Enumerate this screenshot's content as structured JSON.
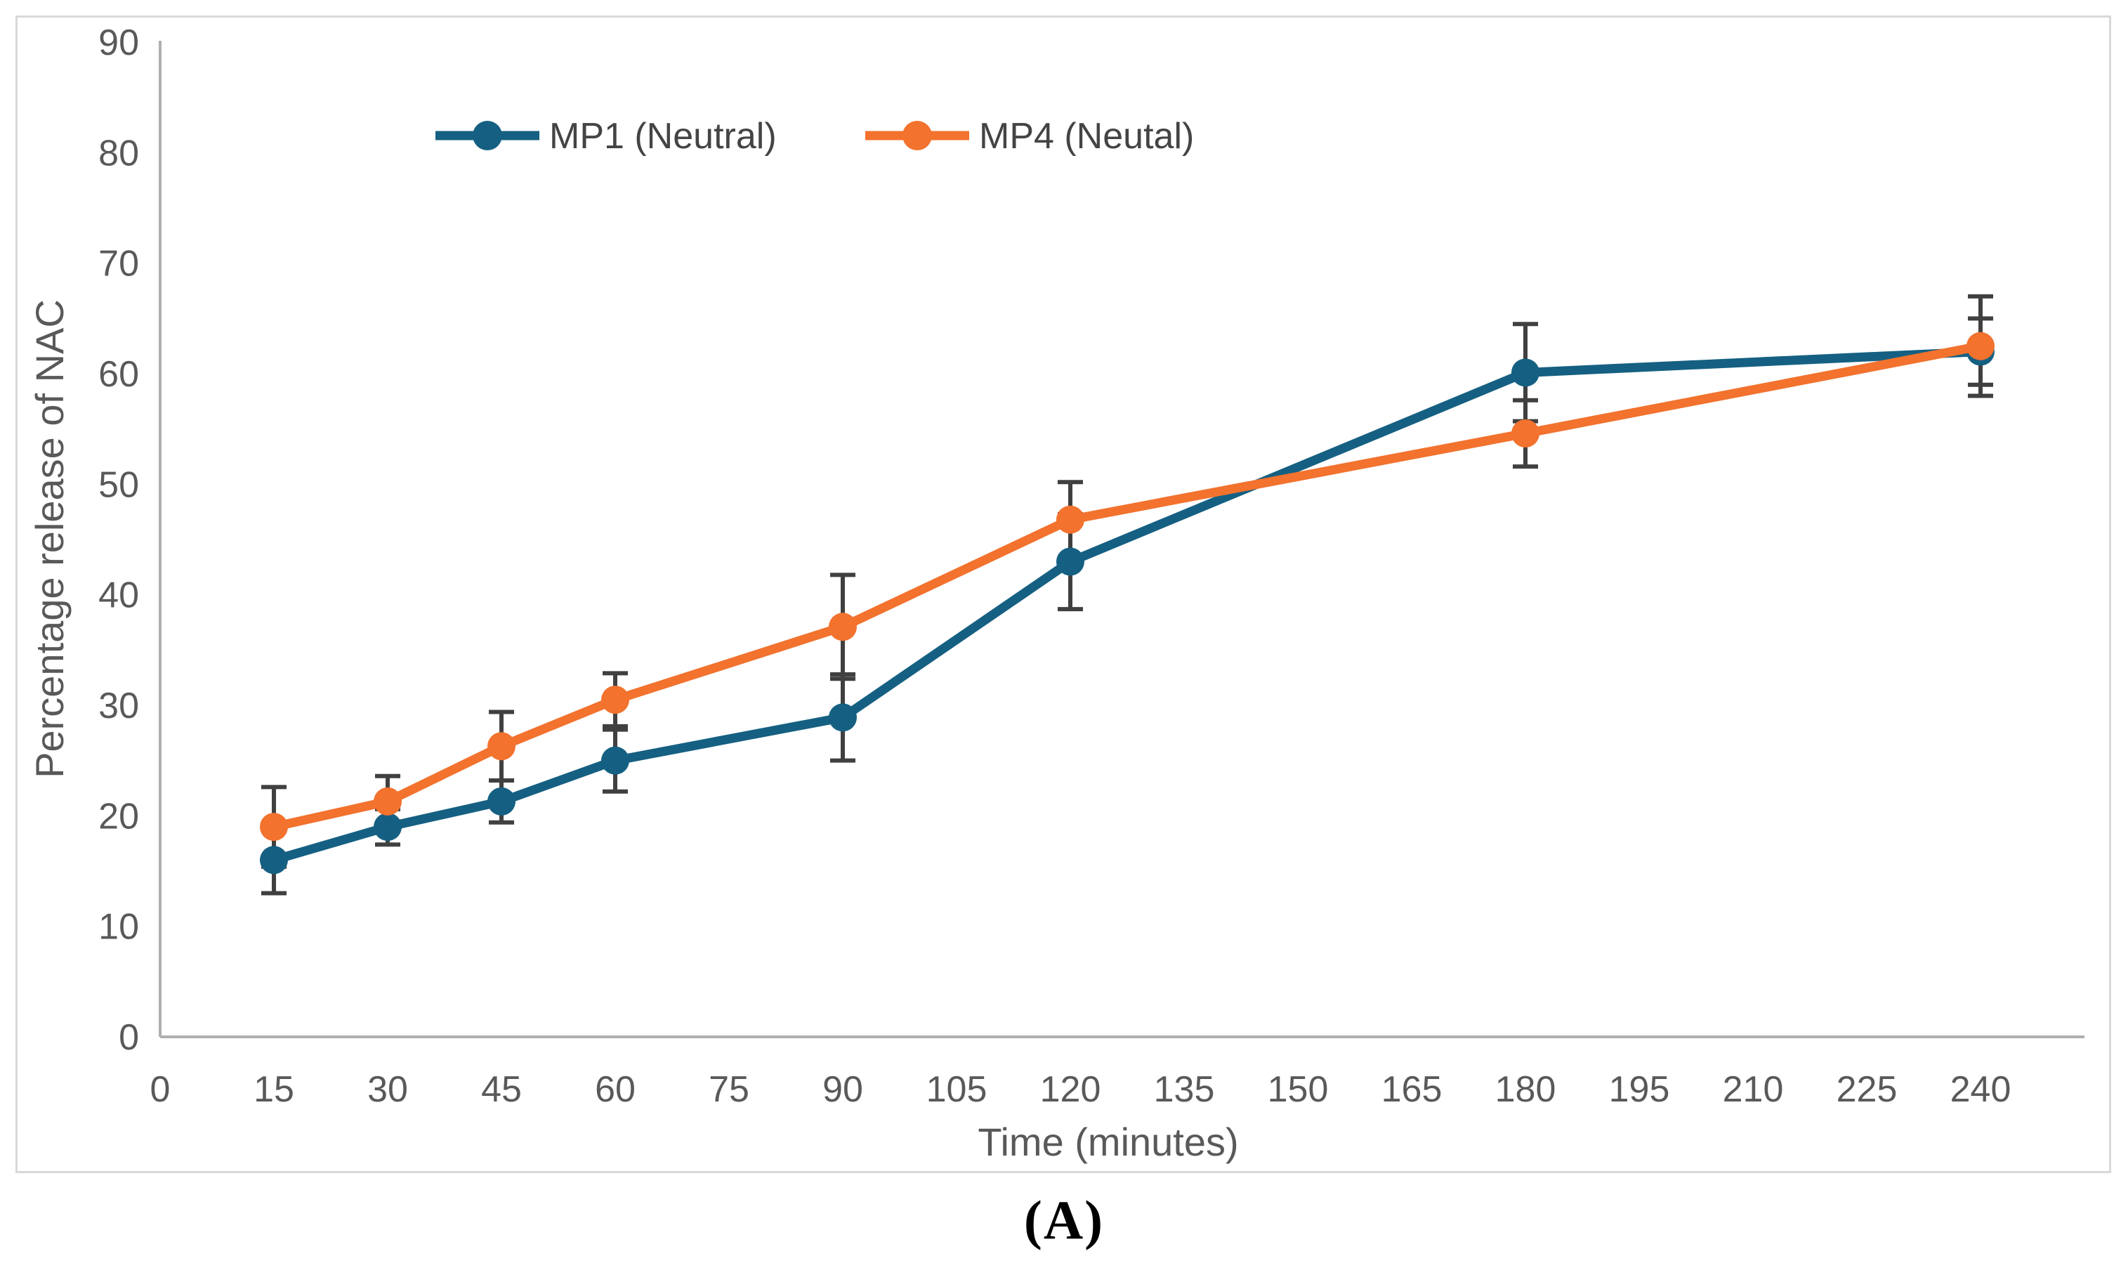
{
  "figure": {
    "caption": "(A)"
  },
  "chart_data": {
    "type": "line",
    "title": "",
    "xlabel": "Time (minutes)",
    "ylabel": "Percentage release of NAC",
    "x": [
      15,
      30,
      45,
      60,
      90,
      120,
      180,
      240
    ],
    "series": [
      {
        "name": "MP1 (Neutral)",
        "color": "#156082",
        "values": [
          16.0,
          19.0,
          21.3,
          25.0,
          28.9,
          43.0,
          60.1,
          62.0
        ],
        "errors": [
          3.0,
          1.6,
          1.9,
          2.8,
          3.9,
          4.3,
          4.4,
          3.0
        ]
      },
      {
        "name": "MP4 (Neutal)",
        "color": "#F2722E",
        "values": [
          19.0,
          21.3,
          26.3,
          30.5,
          37.1,
          46.8,
          54.6,
          62.5
        ],
        "errors": [
          3.6,
          2.3,
          3.1,
          2.4,
          4.7,
          3.4,
          3.0,
          4.5
        ]
      }
    ],
    "x_tick_labels": [
      0,
      15,
      30,
      45,
      60,
      75,
      90,
      105,
      120,
      135,
      150,
      165,
      180,
      195,
      210,
      225,
      240
    ],
    "y_tick_labels": [
      0,
      10,
      20,
      30,
      40,
      50,
      60,
      70,
      80,
      90
    ],
    "xlim": [
      0,
      253
    ],
    "ylim": [
      0,
      90
    ],
    "grid": false,
    "legend_position": "top-center",
    "marker": "circle",
    "error_bar_color": "#404040",
    "axis_line_color": "#AFAFAF",
    "tick_label_color": "#595959",
    "axis_title_color": "#595959",
    "legend_text_color": "#444444",
    "frame_border_color": "#D9D9D9"
  }
}
